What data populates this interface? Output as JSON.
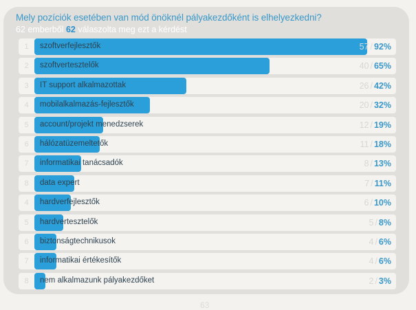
{
  "survey": {
    "question": "Mely pozíciók esetében van mód önöknél pályakezdőként is elhelyezkedni?",
    "respondents_total": "62",
    "respondents_prefix": " emberből ",
    "respondents_answered": "62",
    "respondents_suffix": " válaszolta meg ezt a kérdést",
    "bottom_partial_text": "63"
  },
  "colors": {
    "bar": "#2a9fd9",
    "accent_text": "#3a98c9",
    "card_bg": "#e0dfdb",
    "row_bg": "#f4f3f0"
  },
  "chart_data": {
    "type": "bar",
    "orientation": "horizontal",
    "title": "Mely pozíciók esetében van mód önöknél pályakezdőként is elhelyezkedni?",
    "subtitle": "62 emberből 62 válaszolta meg ezt a kérdést",
    "xlim": [
      0,
      100
    ],
    "unit": "%",
    "categories": [
      "szoftverfejlesztők",
      "szoftvertesztelők",
      "IT support alkalmazottak",
      "mobilalkalmazás-fejlesztők",
      "account/projekt menedzserek",
      "hálózatüzemeltetők",
      "informatikai tanácsadók",
      "data expert",
      "hardverfejlesztők",
      "hardvertesztelők",
      "biztonságtechnikusok",
      "informatikai értékesítők",
      "nem alkalmazunk pályakezdőket"
    ],
    "ranks": [
      "1",
      "2",
      "3",
      "4",
      "5",
      "6",
      "7",
      "8",
      "4",
      "5",
      "6",
      "7",
      "8"
    ],
    "counts": [
      57,
      40,
      26,
      20,
      12,
      11,
      8,
      7,
      6,
      5,
      4,
      4,
      2
    ],
    "values": [
      92,
      65,
      42,
      32,
      19,
      18,
      13,
      11,
      10,
      8,
      6,
      6,
      3
    ]
  }
}
